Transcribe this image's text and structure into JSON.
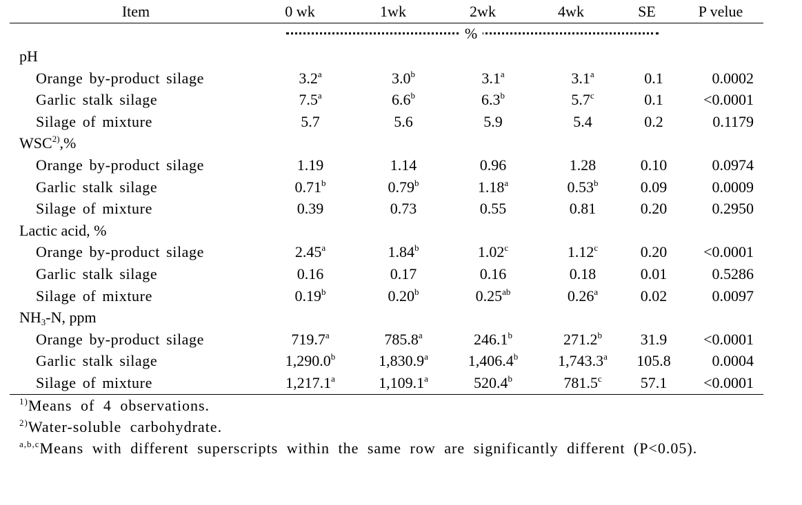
{
  "table": {
    "header": [
      "Item",
      "0 wk",
      "1wk",
      "2wk",
      "4wk",
      "SE",
      "P velue"
    ],
    "unit": "%",
    "sections": [
      {
        "label": [
          {
            "text": "pH"
          }
        ],
        "rows": [
          {
            "item": "Orange by-product silage",
            "cells": [
              {
                "text": "3.2",
                "sup": "a"
              },
              {
                "text": "3.0",
                "sup": "b"
              },
              {
                "text": "3.1",
                "sup": "a"
              },
              {
                "text": "3.1",
                "sup": "a"
              },
              {
                "text": "0.1"
              },
              {
                "text": "0.0002"
              }
            ]
          },
          {
            "item": "Garlic stalk silage",
            "cells": [
              {
                "text": "7.5",
                "sup": "a"
              },
              {
                "text": "6.6",
                "sup": "b"
              },
              {
                "text": "6.3",
                "sup": "b"
              },
              {
                "text": "5.7",
                "sup": "c"
              },
              {
                "text": "0.1"
              },
              {
                "text": "<0.0001"
              }
            ]
          },
          {
            "item": "Silage of mixture",
            "cells": [
              {
                "text": "5.7"
              },
              {
                "text": "5.6"
              },
              {
                "text": "5.9"
              },
              {
                "text": "5.4"
              },
              {
                "text": "0.2"
              },
              {
                "text": "0.1179"
              }
            ]
          }
        ]
      },
      {
        "label": [
          {
            "text": "WSC"
          },
          {
            "sup": "2)"
          },
          {
            "text": ",%"
          }
        ],
        "rows": [
          {
            "item": "Orange by-product silage",
            "cells": [
              {
                "text": "1.19"
              },
              {
                "text": "1.14"
              },
              {
                "text": "0.96"
              },
              {
                "text": "1.28"
              },
              {
                "text": "0.10"
              },
              {
                "text": "0.0974"
              }
            ]
          },
          {
            "item": "Garlic stalk silage",
            "cells": [
              {
                "text": "0.71",
                "sup": "b"
              },
              {
                "text": "0.79",
                "sup": "b"
              },
              {
                "text": "1.18",
                "sup": "a"
              },
              {
                "text": "0.53",
                "sup": "b"
              },
              {
                "text": "0.09"
              },
              {
                "text": "0.0009"
              }
            ]
          },
          {
            "item": "Silage of mixture",
            "cells": [
              {
                "text": "0.39"
              },
              {
                "text": "0.73"
              },
              {
                "text": "0.55"
              },
              {
                "text": "0.81"
              },
              {
                "text": "0.20"
              },
              {
                "text": "0.2950"
              }
            ]
          }
        ]
      },
      {
        "label": [
          {
            "text": "Lactic acid, %"
          }
        ],
        "rows": [
          {
            "item": "Orange by-product silage",
            "cells": [
              {
                "text": "2.45",
                "sup": "a"
              },
              {
                "text": "1.84",
                "sup": "b"
              },
              {
                "text": "1.02",
                "sup": "c"
              },
              {
                "text": "1.12",
                "sup": "c"
              },
              {
                "text": "0.20"
              },
              {
                "text": "<0.0001"
              }
            ]
          },
          {
            "item": "Garlic stalk silage",
            "cells": [
              {
                "text": "0.16"
              },
              {
                "text": "0.17"
              },
              {
                "text": "0.16"
              },
              {
                "text": "0.18"
              },
              {
                "text": "0.01"
              },
              {
                "text": "0.5286"
              }
            ]
          },
          {
            "item": "Silage of mixture",
            "cells": [
              {
                "text": "0.19",
                "sup": "b"
              },
              {
                "text": "0.20",
                "sup": "b"
              },
              {
                "text": "0.25",
                "sup": "ab"
              },
              {
                "text": "0.26",
                "sup": "a"
              },
              {
                "text": "0.02"
              },
              {
                "text": "0.0097"
              }
            ]
          }
        ]
      },
      {
        "label": [
          {
            "text": "NH"
          },
          {
            "sub": "3"
          },
          {
            "text": "-N, ppm"
          }
        ],
        "rows": [
          {
            "item": "Orange by-product silage",
            "cells": [
              {
                "text": "719.7",
                "sup": "a"
              },
              {
                "text": "785.8",
                "sup": "a"
              },
              {
                "text": "246.1",
                "sup": "b"
              },
              {
                "text": "271.2",
                "sup": "b"
              },
              {
                "text": "31.9"
              },
              {
                "text": "<0.0001"
              }
            ]
          },
          {
            "item": "Garlic stalk silage",
            "cells": [
              {
                "text": "1,290.0",
                "sup": "b"
              },
              {
                "text": "1,830.9",
                "sup": "a"
              },
              {
                "text": "1,406.4",
                "sup": "b"
              },
              {
                "text": "1,743.3",
                "sup": "a"
              },
              {
                "text": "105.8"
              },
              {
                "text": "0.0004"
              }
            ]
          },
          {
            "item": "Silage of mixture",
            "cells": [
              {
                "text": "1,217.1",
                "sup": "a"
              },
              {
                "text": "1,109.1",
                "sup": "a"
              },
              {
                "text": "520.4",
                "sup": "b"
              },
              {
                "text": "781.5",
                "sup": "c"
              },
              {
                "text": "57.1"
              },
              {
                "text": "<0.0001"
              }
            ]
          }
        ]
      }
    ],
    "footnotes": [
      {
        "sup": "1)",
        "text": "Means of 4 observations."
      },
      {
        "sup": "2)",
        "text": "Water-soluble carbohydrate."
      },
      {
        "sup": "a,b,c",
        "text": "Means with different superscripts within the same row are significantly different (P<0.05)."
      }
    ]
  }
}
